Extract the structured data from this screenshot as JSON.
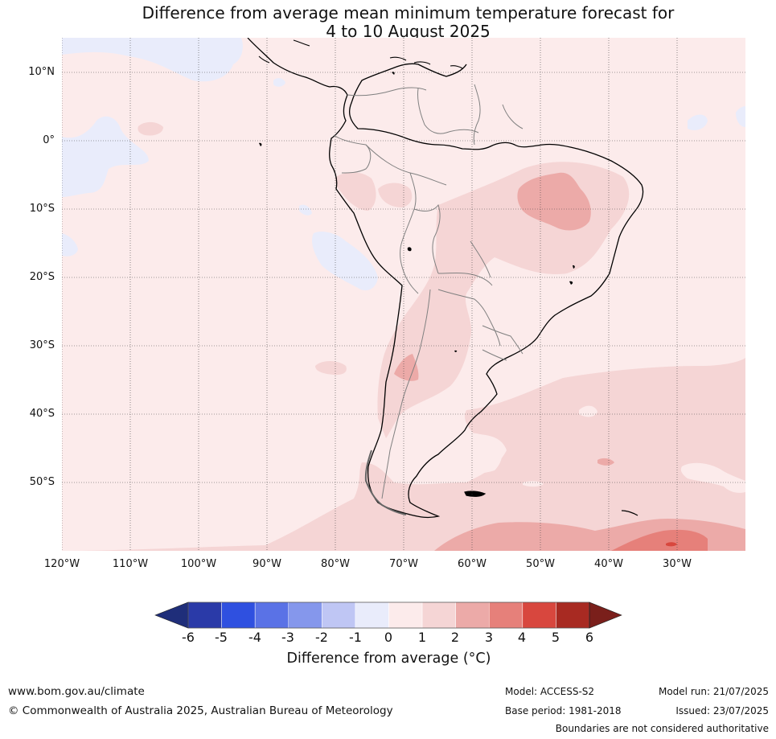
{
  "title": {
    "line1": "Difference from average mean minimum temperature forecast for",
    "line2": "4 to 10 August 2025"
  },
  "map": {
    "lat_labels": [
      "10°N",
      "0°",
      "10°S",
      "20°S",
      "30°S",
      "40°S",
      "50°S"
    ],
    "lon_labels": [
      "120°W",
      "110°W",
      "100°W",
      "90°W",
      "80°W",
      "70°W",
      "60°W",
      "50°W",
      "40°W",
      "30°W"
    ],
    "colors": {
      "ocean_base": "#fcebeb",
      "cool_minus1": "#e9ecfb",
      "warm_1_2": "#f5d5d5",
      "warm_2_3": "#ecaaa8",
      "warm_3_4": "#e6807a",
      "warm_4_5": "#d8473e",
      "coastline": "#000000",
      "borders": "#808080",
      "gridline": "#444444"
    }
  },
  "colorbar": {
    "ticks": [
      "-6",
      "-5",
      "-4",
      "-3",
      "-2",
      "-1",
      "0",
      "1",
      "2",
      "3",
      "4",
      "5",
      "6"
    ],
    "colors": [
      "#2a3aa8",
      "#2f50e0",
      "#5a72e6",
      "#8597ec",
      "#bfc6f4",
      "#e9ecfb",
      "#fcebeb",
      "#f5d5d5",
      "#ecaaa8",
      "#e6807a",
      "#d8473e",
      "#a82a22"
    ],
    "under_color": "#1f2e7a",
    "over_color": "#7a1f1b",
    "label": "Difference from average (°C)"
  },
  "footer": {
    "website": "www.bom.gov.au/climate",
    "copyright": "© Commonwealth of Australia 2025, Australian Bureau of Meteorology",
    "model": "Model: ACCESS-S2",
    "base_period": "Base period: 1981-2018",
    "model_run": "Model run: 21/07/2025",
    "issued": "Issued: 23/07/2025",
    "disclaimer": "Boundaries are not considered authoritative"
  }
}
